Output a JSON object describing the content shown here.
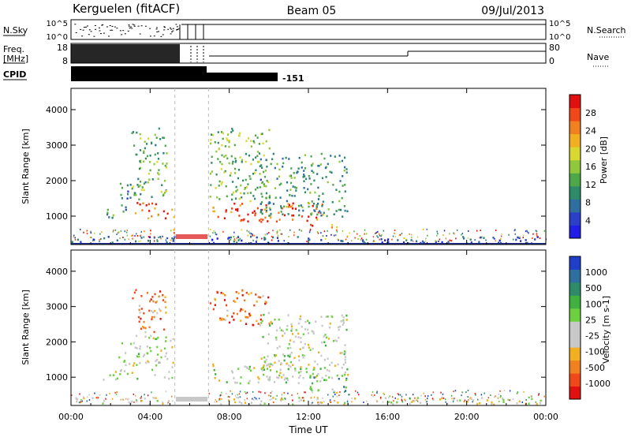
{
  "header": {
    "station": "Kerguelen (fitACF)",
    "beam": "Beam 05",
    "date": "09/Jul/2013"
  },
  "strips": {
    "nsky": {
      "label": "N.Sky",
      "tick_top": "10^5",
      "tick_bottom": "10^0"
    },
    "nsearch": {
      "label": "N.Search",
      "tick_top": "10^5",
      "tick_bottom": "10^0"
    },
    "freq": {
      "label_line1": "Freq.",
      "label_line2": "[MHz]",
      "tick_top": "18",
      "tick_bottom": "8"
    },
    "nave": {
      "label": "Nave",
      "tick_top": "80",
      "tick_bottom": "0"
    },
    "cpid": {
      "label": "CPID",
      "value": "-151"
    }
  },
  "chart_data": [
    {
      "type": "heatmap",
      "panel": "power",
      "ylabel": "Slant Range [km]",
      "yticks": [
        "1000",
        "2000",
        "3000",
        "4000"
      ],
      "ylim": [
        200,
        4600
      ],
      "xlim": [
        "00:00",
        "24:00"
      ],
      "xticks": [
        "00:00",
        "04:00",
        "08:00",
        "12:00",
        "16:00",
        "20:00",
        "00:00"
      ],
      "colorbar": {
        "label": "Power [dB]",
        "ticks": [
          "4",
          "8",
          "12",
          "16",
          "20",
          "24",
          "28"
        ],
        "range": [
          0,
          30
        ],
        "colors": [
          "#1f1fe6",
          "#2b3fc8",
          "#2f6fa0",
          "#2f8a6a",
          "#4ea84a",
          "#8fc83a",
          "#d8d830",
          "#f0b020",
          "#f08020",
          "#f04818",
          "#e01010"
        ]
      },
      "gap_hours": [
        5.25,
        6.95
      ],
      "regions": [
        {
          "t0": 1.6,
          "t1": 2.6,
          "r0": 950,
          "r1": 1250,
          "level": 0.35
        },
        {
          "t0": 2.4,
          "t1": 3.2,
          "r0": 1100,
          "r1": 2000,
          "level": 0.3
        },
        {
          "t0": 3.0,
          "t1": 4.8,
          "r0": 1500,
          "r1": 3500,
          "level": 0.4
        },
        {
          "t0": 3.2,
          "t1": 5.2,
          "r0": 950,
          "r1": 1400,
          "level": 0.85
        },
        {
          "t0": 7.0,
          "t1": 12.8,
          "r0": 850,
          "r1": 1400,
          "level": 0.85
        },
        {
          "t0": 7.0,
          "t1": 10.0,
          "r0": 1400,
          "r1": 3500,
          "level": 0.45
        },
        {
          "t0": 9.5,
          "t1": 14.0,
          "r0": 1000,
          "r1": 2800,
          "level": 0.35
        },
        {
          "t0": 12.0,
          "t1": 13.5,
          "r0": 650,
          "r1": 800,
          "level": 0.75
        },
        {
          "t0": 0.0,
          "t1": 24.0,
          "r0": 250,
          "r1": 450,
          "level": 0.2
        }
      ]
    },
    {
      "type": "heatmap",
      "panel": "velocity",
      "ylabel": "Slant Range [km]",
      "xlabel": "Time UT",
      "yticks": [
        "1000",
        "2000",
        "3000",
        "4000"
      ],
      "ylim": [
        200,
        4600
      ],
      "xlim": [
        "00:00",
        "24:00"
      ],
      "xticks": [
        "00:00",
        "04:00",
        "08:00",
        "12:00",
        "16:00",
        "20:00",
        "00:00"
      ],
      "colorbar": {
        "label": "Velocity [m s-1]",
        "ticks": [
          "1000",
          "500",
          "100",
          "25",
          "-25",
          "-100",
          "-500",
          "-1000"
        ],
        "range": [
          -1000,
          1000
        ],
        "colors": [
          "#e01010",
          "#f04818",
          "#f08020",
          "#f0b020",
          "#c8c8c8",
          "#c8c8c8",
          "#6cd040",
          "#40b040",
          "#2f8a6a",
          "#2f6fa0",
          "#1f3fc8"
        ]
      },
      "gap_hours": [
        5.25,
        6.95
      ],
      "regions": [
        {
          "t0": 1.6,
          "t1": 2.6,
          "r0": 950,
          "r1": 1250,
          "level": 0.5
        },
        {
          "t0": 2.4,
          "t1": 3.2,
          "r0": 1100,
          "r1": 2000,
          "level": 0.45
        },
        {
          "t0": 3.0,
          "t1": 4.8,
          "r0": 2300,
          "r1": 3500,
          "level": 0.25
        },
        {
          "t0": 3.2,
          "t1": 5.2,
          "r0": 950,
          "r1": 2200,
          "level": 0.5
        },
        {
          "t0": 7.0,
          "t1": 12.8,
          "r0": 850,
          "r1": 1400,
          "level": 0.5
        },
        {
          "t0": 7.0,
          "t1": 10.0,
          "r0": 2500,
          "r1": 3500,
          "level": 0.2
        },
        {
          "t0": 9.5,
          "t1": 14.0,
          "r0": 1000,
          "r1": 2800,
          "level": 0.5
        },
        {
          "t0": 12.0,
          "t1": 14.0,
          "r0": 600,
          "r1": 1100,
          "level": 0.7
        },
        {
          "t0": 0.0,
          "t1": 24.0,
          "r0": 250,
          "r1": 450,
          "level": 0.45
        }
      ]
    }
  ]
}
